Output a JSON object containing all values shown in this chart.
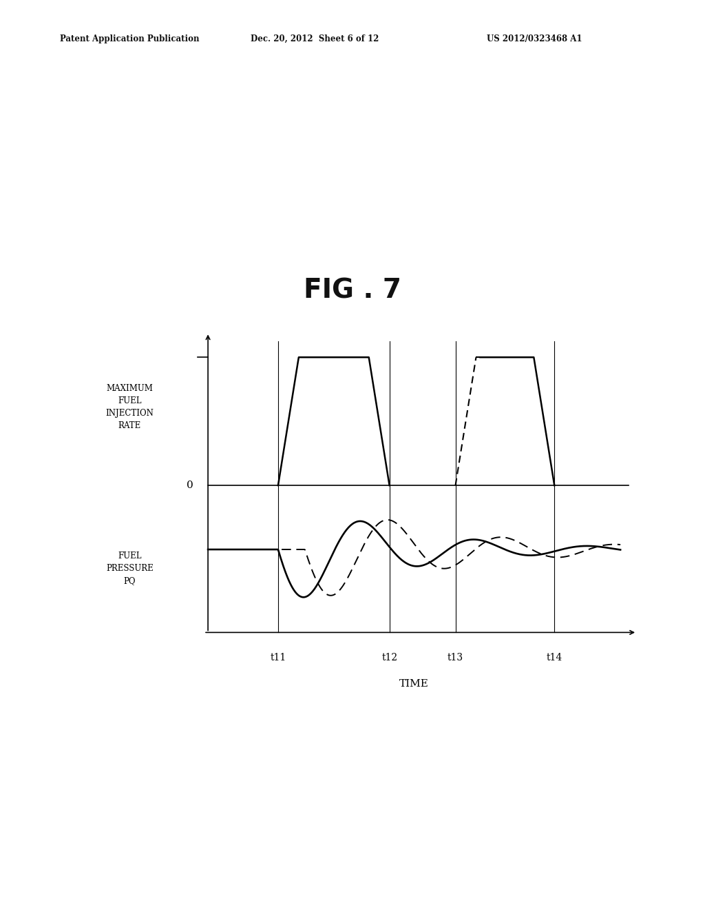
{
  "title": "FIG . 7",
  "header_left": "Patent Application Publication",
  "header_mid": "Dec. 20, 2012  Sheet 6 of 12",
  "header_right": "US 2012/0323468 A1",
  "ylabel_top": "MAXIMUM\nFUEL\nINJECTION\nRATE",
  "zero_label": "0",
  "ylabel_bottom": "FUEL\nPRESSURE\nPQ",
  "xlabel": "TIME",
  "t_labels": [
    "t11",
    "t12",
    "t13",
    "t14"
  ],
  "background_color": "#ffffff",
  "line_color": "#000000"
}
